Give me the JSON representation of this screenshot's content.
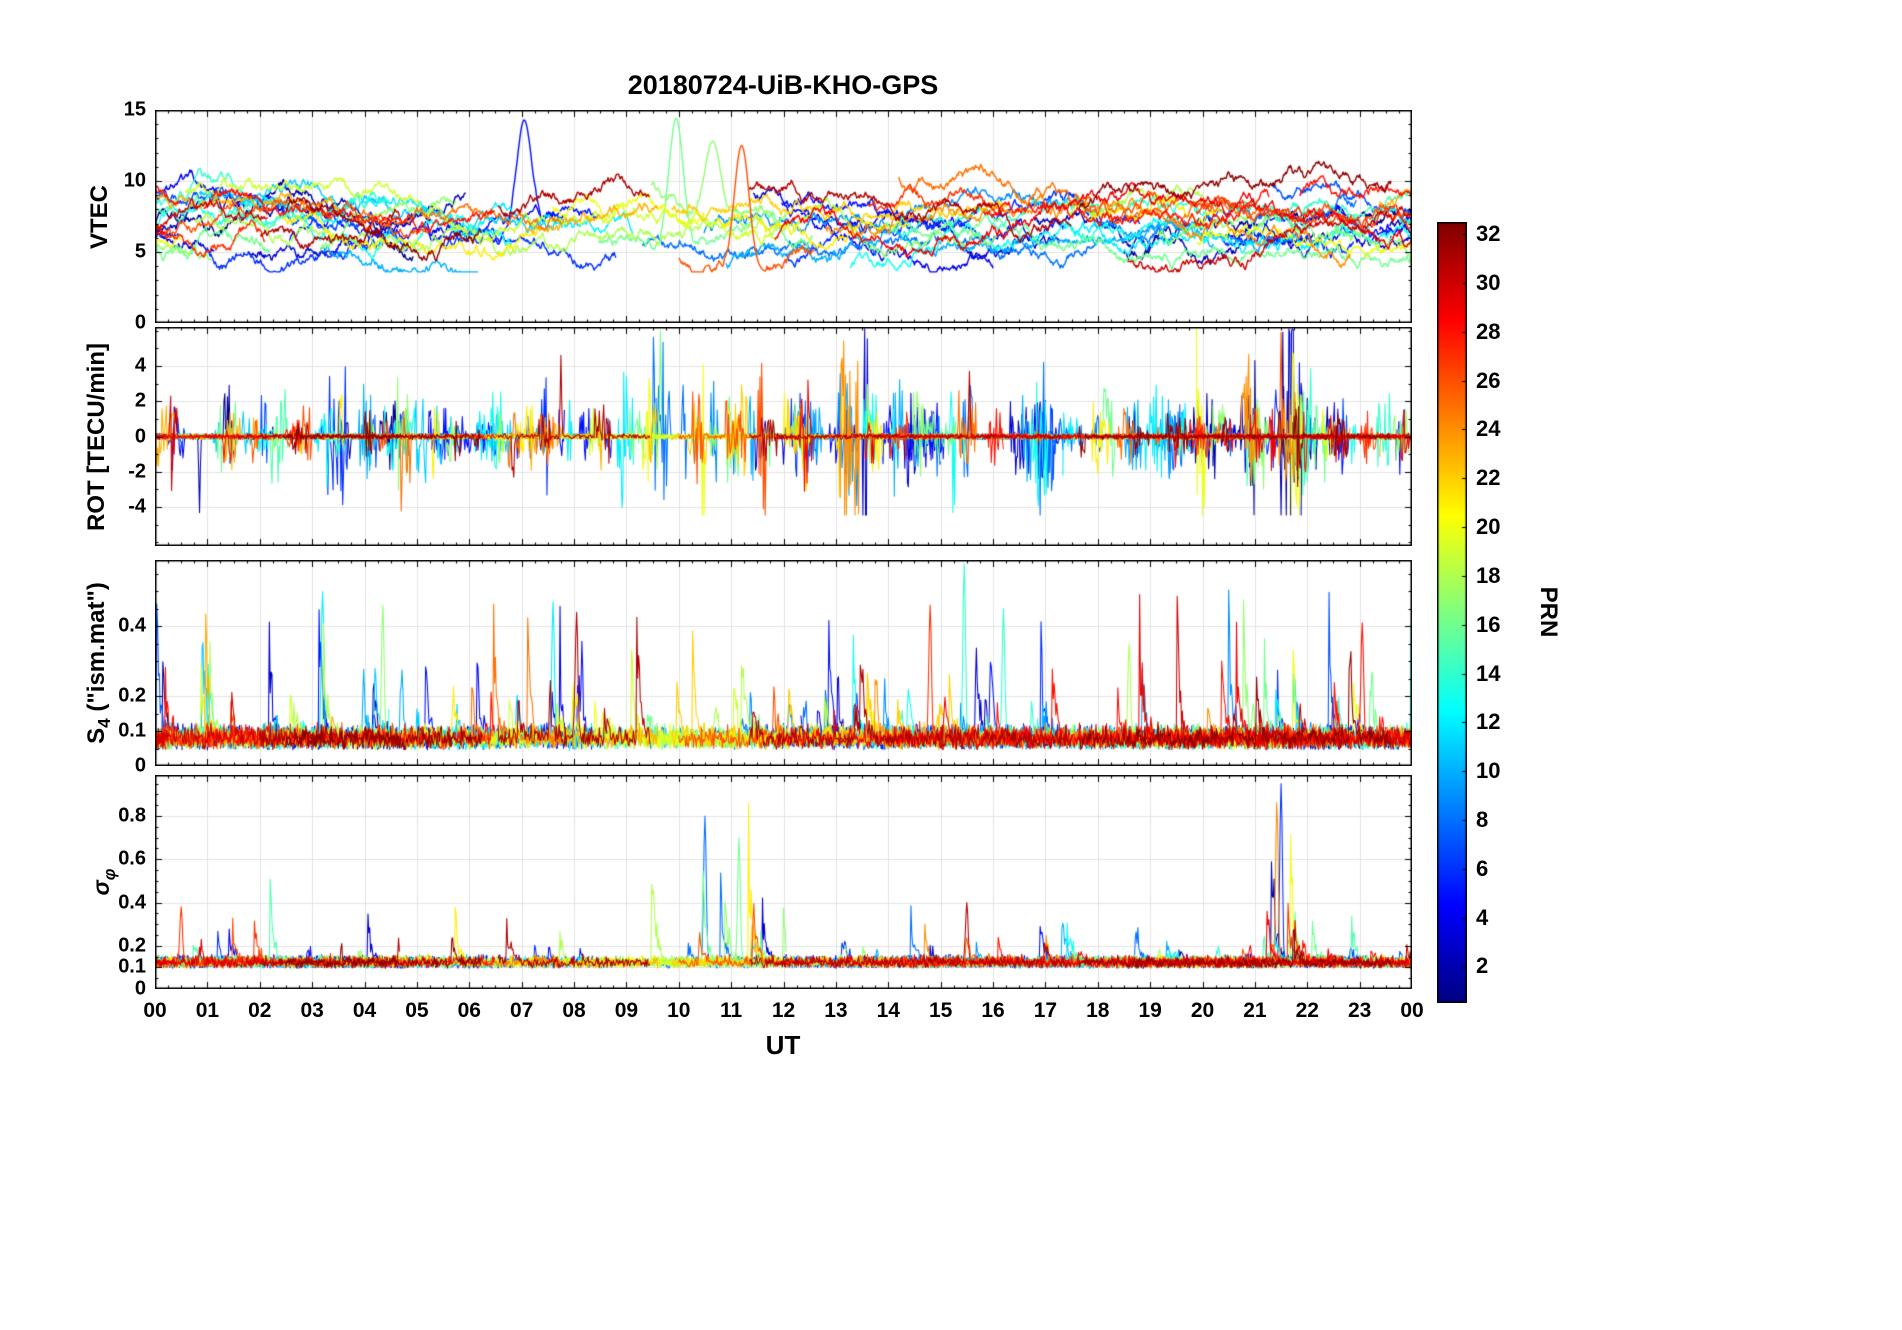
{
  "title": "20180724-UiB-KHO-GPS",
  "style": {
    "background": "#ffffff",
    "grid_color": "#e3e3e3",
    "axis_color": "#000000"
  },
  "chart_data": {
    "type": "line",
    "title": "20180724-UiB-KHO-GPS",
    "xlabel": "UT",
    "x_range": [
      0,
      24
    ],
    "x_tick_labels": [
      "00",
      "01",
      "02",
      "03",
      "04",
      "05",
      "06",
      "07",
      "08",
      "09",
      "10",
      "11",
      "12",
      "13",
      "14",
      "15",
      "16",
      "17",
      "18",
      "19",
      "20",
      "21",
      "22",
      "23",
      "00"
    ],
    "legend_position": "colorbar-right",
    "grid": true,
    "panels": [
      {
        "id": "vtec",
        "ylabel": "VTEC",
        "ylim": [
          0,
          15
        ],
        "yticks": [
          0,
          5,
          10,
          15
        ],
        "ytick_labels": [
          "0",
          "5",
          "10",
          "15"
        ],
        "typical_range": [
          4,
          12
        ]
      },
      {
        "id": "rot",
        "ylabel": "ROT [TECU/min]",
        "ylim": [
          -6.2,
          6.2
        ],
        "yticks": [
          -4,
          -2,
          0,
          2,
          4
        ],
        "ytick_labels": [
          "-4",
          "-2",
          "0",
          "2",
          "4"
        ],
        "typical_range": [
          -1,
          1
        ]
      },
      {
        "id": "s4",
        "ylabel": "S4 (\"ism.mat\")",
        "ylabel_parts": {
          "base": "S",
          "sub": "4",
          "rest": " (\"ism.mat\")"
        },
        "ylim": [
          0,
          0.59
        ],
        "yticks": [
          0,
          0.1,
          0.2,
          0.4
        ],
        "ytick_labels": [
          "0",
          "0.1",
          "0.2",
          "0.4"
        ],
        "typical_range": [
          0.05,
          0.2
        ]
      },
      {
        "id": "sigma_phi",
        "ylabel": "σφ",
        "ylabel_parts": {
          "base": "σ",
          "sub": "φ"
        },
        "ylim": [
          0,
          0.99
        ],
        "yticks": [
          0,
          0.1,
          0.2,
          0.4,
          0.6,
          0.8
        ],
        "ytick_labels": [
          "0",
          "0.1",
          "0.2",
          "0.4",
          "0.6",
          "0.8"
        ],
        "typical_range": [
          0.08,
          0.2
        ]
      }
    ],
    "colorbar": {
      "label": "PRN",
      "min": 0.5,
      "max": 32.5,
      "ticks": [
        2,
        4,
        6,
        8,
        10,
        12,
        14,
        16,
        18,
        20,
        22,
        24,
        26,
        28,
        30,
        32
      ],
      "colormap": "jet"
    },
    "series_prns": [
      1,
      2,
      3,
      4,
      5,
      6,
      7,
      8,
      9,
      10,
      11,
      12,
      13,
      14,
      15,
      16,
      17,
      18,
      19,
      20,
      21,
      22,
      23,
      24,
      25,
      26,
      27,
      28,
      29,
      30,
      31,
      32
    ],
    "notable_features": [
      {
        "panel": "vtec",
        "t": 7.05,
        "value": 14.3,
        "prn": 5
      },
      {
        "panel": "vtec",
        "t": 9.95,
        "value": 14.4,
        "prn": 16
      },
      {
        "panel": "vtec",
        "t": 10.65,
        "value": 12.8,
        "prn": 17
      },
      {
        "panel": "vtec",
        "t": 11.2,
        "value": 12.5,
        "prn": 26
      },
      {
        "panel": "rot",
        "t": 0.85,
        "value": -4.3,
        "prn": 2
      },
      {
        "panel": "rot",
        "t": 9.65,
        "value": 6.0,
        "prn": 16
      },
      {
        "panel": "rot",
        "t": 7.75,
        "value": 4.6,
        "prn": 31
      },
      {
        "panel": "rot",
        "t": 15.55,
        "value": 3.7,
        "prn": 31
      },
      {
        "panel": "rot",
        "t": 21.5,
        "value": 5.9,
        "prn": 26
      },
      {
        "panel": "rot",
        "t": 13.4,
        "value": -3.9,
        "prn": 9
      },
      {
        "panel": "s4",
        "t": 3.2,
        "value": 0.5,
        "prn": 12
      },
      {
        "panel": "s4",
        "t": 4.35,
        "value": 0.46,
        "prn": 17
      },
      {
        "panel": "s4",
        "t": 7.6,
        "value": 0.47,
        "prn": 12
      },
      {
        "panel": "s4",
        "t": 8.05,
        "value": 0.44,
        "prn": 31
      },
      {
        "panel": "s4",
        "t": 14.8,
        "value": 0.46,
        "prn": 27
      },
      {
        "panel": "s4",
        "t": 15.45,
        "value": 0.58,
        "prn": 14
      },
      {
        "panel": "s4",
        "t": 16.2,
        "value": 0.45,
        "prn": 14
      },
      {
        "panel": "s4",
        "t": 18.6,
        "value": 0.35,
        "prn": 18
      },
      {
        "panel": "s4",
        "t": 23.05,
        "value": 0.41,
        "prn": 28
      },
      {
        "panel": "sigma_phi",
        "t": 10.5,
        "value": 0.8,
        "prn": 8
      },
      {
        "panel": "sigma_phi",
        "t": 11.15,
        "value": 0.7,
        "prn": 16
      },
      {
        "panel": "sigma_phi",
        "t": 21.42,
        "value": 0.87,
        "prn": 24
      },
      {
        "panel": "sigma_phi",
        "t": 21.5,
        "value": 0.95,
        "prn": 6
      },
      {
        "panel": "sigma_phi",
        "t": 0.5,
        "value": 0.38,
        "prn": 27
      },
      {
        "panel": "sigma_phi",
        "t": 15.5,
        "value": 0.4,
        "prn": 31
      }
    ],
    "generation": {
      "seed": 20180724,
      "samples_per_day": 1441
    }
  }
}
